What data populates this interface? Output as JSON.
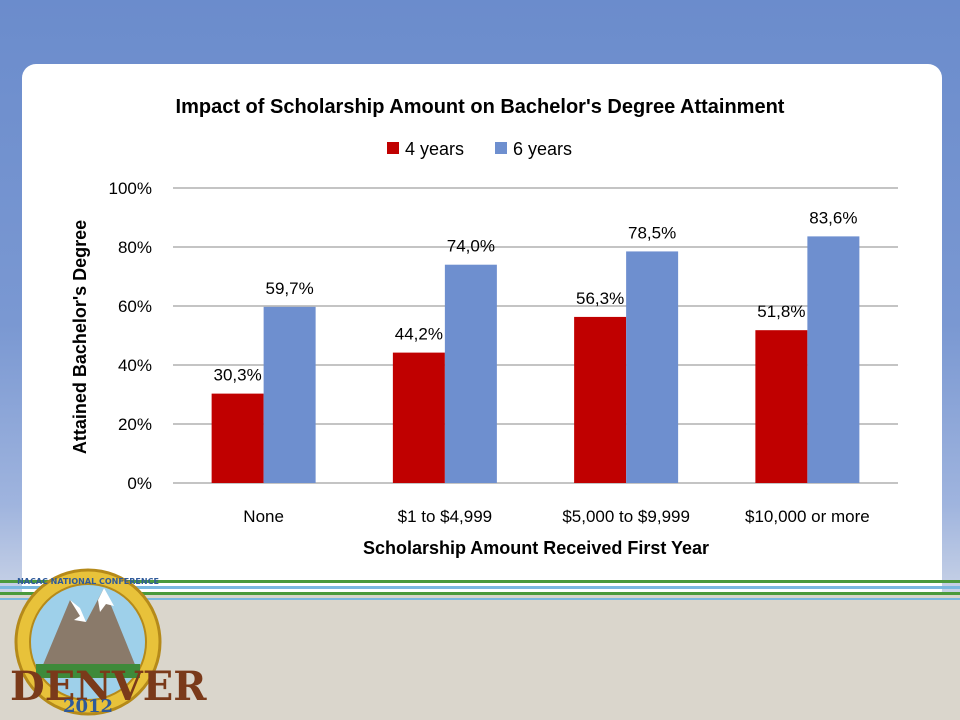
{
  "colors": {
    "four_years": "#c00000",
    "six_years": "#6e8fcf",
    "grid": "#888888"
  },
  "logo": {
    "icon": "denver-conference-seal-icon",
    "top_text": "NACAC NATIONAL CONFERENCE",
    "city": "DENVER",
    "year": "2012"
  },
  "chart_data": {
    "type": "bar",
    "title": "Impact of Scholarship Amount on Bachelor's Degree Attainment",
    "xlabel": "Scholarship Amount Received First Year",
    "ylabel": "Attained Bachelor's Degree",
    "categories": [
      "None",
      "$1 to $4,999",
      "$5,000 to $9,999",
      "$10,000 or more"
    ],
    "series": [
      {
        "name": "4 years",
        "values": [
          30.3,
          44.2,
          56.3,
          51.8
        ],
        "labels": [
          "30,3%",
          "44,2%",
          "56,3%",
          "51,8%"
        ]
      },
      {
        "name": "6 years",
        "values": [
          59.7,
          74.0,
          78.5,
          83.6
        ],
        "labels": [
          "59,7%",
          "74,0%",
          "78,5%",
          "83,6%"
        ]
      }
    ],
    "ylim": [
      0,
      100
    ],
    "yticks": [
      "0%",
      "20%",
      "40%",
      "60%",
      "80%",
      "100%"
    ],
    "grid": true,
    "legend": "top"
  }
}
